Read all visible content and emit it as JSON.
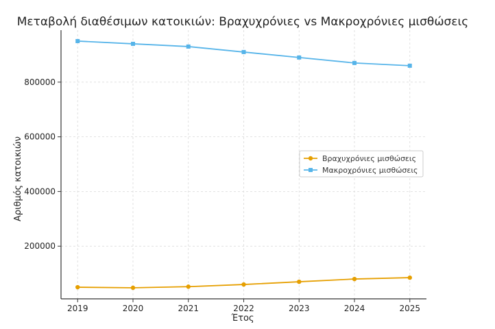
{
  "chart_data": {
    "type": "line",
    "title": "Μεταβολή διαθέσιμων κατοικιών: Βραχυχρόνιες vs Μακροχρόνιες μισθώσεις",
    "xlabel": "Έτος",
    "ylabel": "Αριθμός κατοικιών",
    "x": [
      2019,
      2020,
      2021,
      2022,
      2023,
      2024,
      2025
    ],
    "x_tick_labels": [
      "2019",
      "2020",
      "2021",
      "2022",
      "2023",
      "2024",
      "2025"
    ],
    "y_ticks": [
      200000,
      400000,
      600000,
      800000
    ],
    "y_tick_labels": [
      "200000",
      "400000",
      "600000",
      "800000"
    ],
    "xlim": [
      2018.7,
      2025.3
    ],
    "ylim": [
      7500,
      990000
    ],
    "grid": true,
    "legend_position": "center-right",
    "series": [
      {
        "name": "Βραχυχρόνιες μισθώσεις",
        "color": "#E69F00",
        "marker": "circle",
        "values": [
          50000,
          48000,
          52000,
          60000,
          70000,
          80000,
          85000
        ]
      },
      {
        "name": "Μακροχρόνιες μισθώσεις",
        "color": "#56B4E9",
        "marker": "square",
        "values": [
          950000,
          940000,
          930000,
          910000,
          890000,
          870000,
          860000
        ]
      }
    ]
  }
}
